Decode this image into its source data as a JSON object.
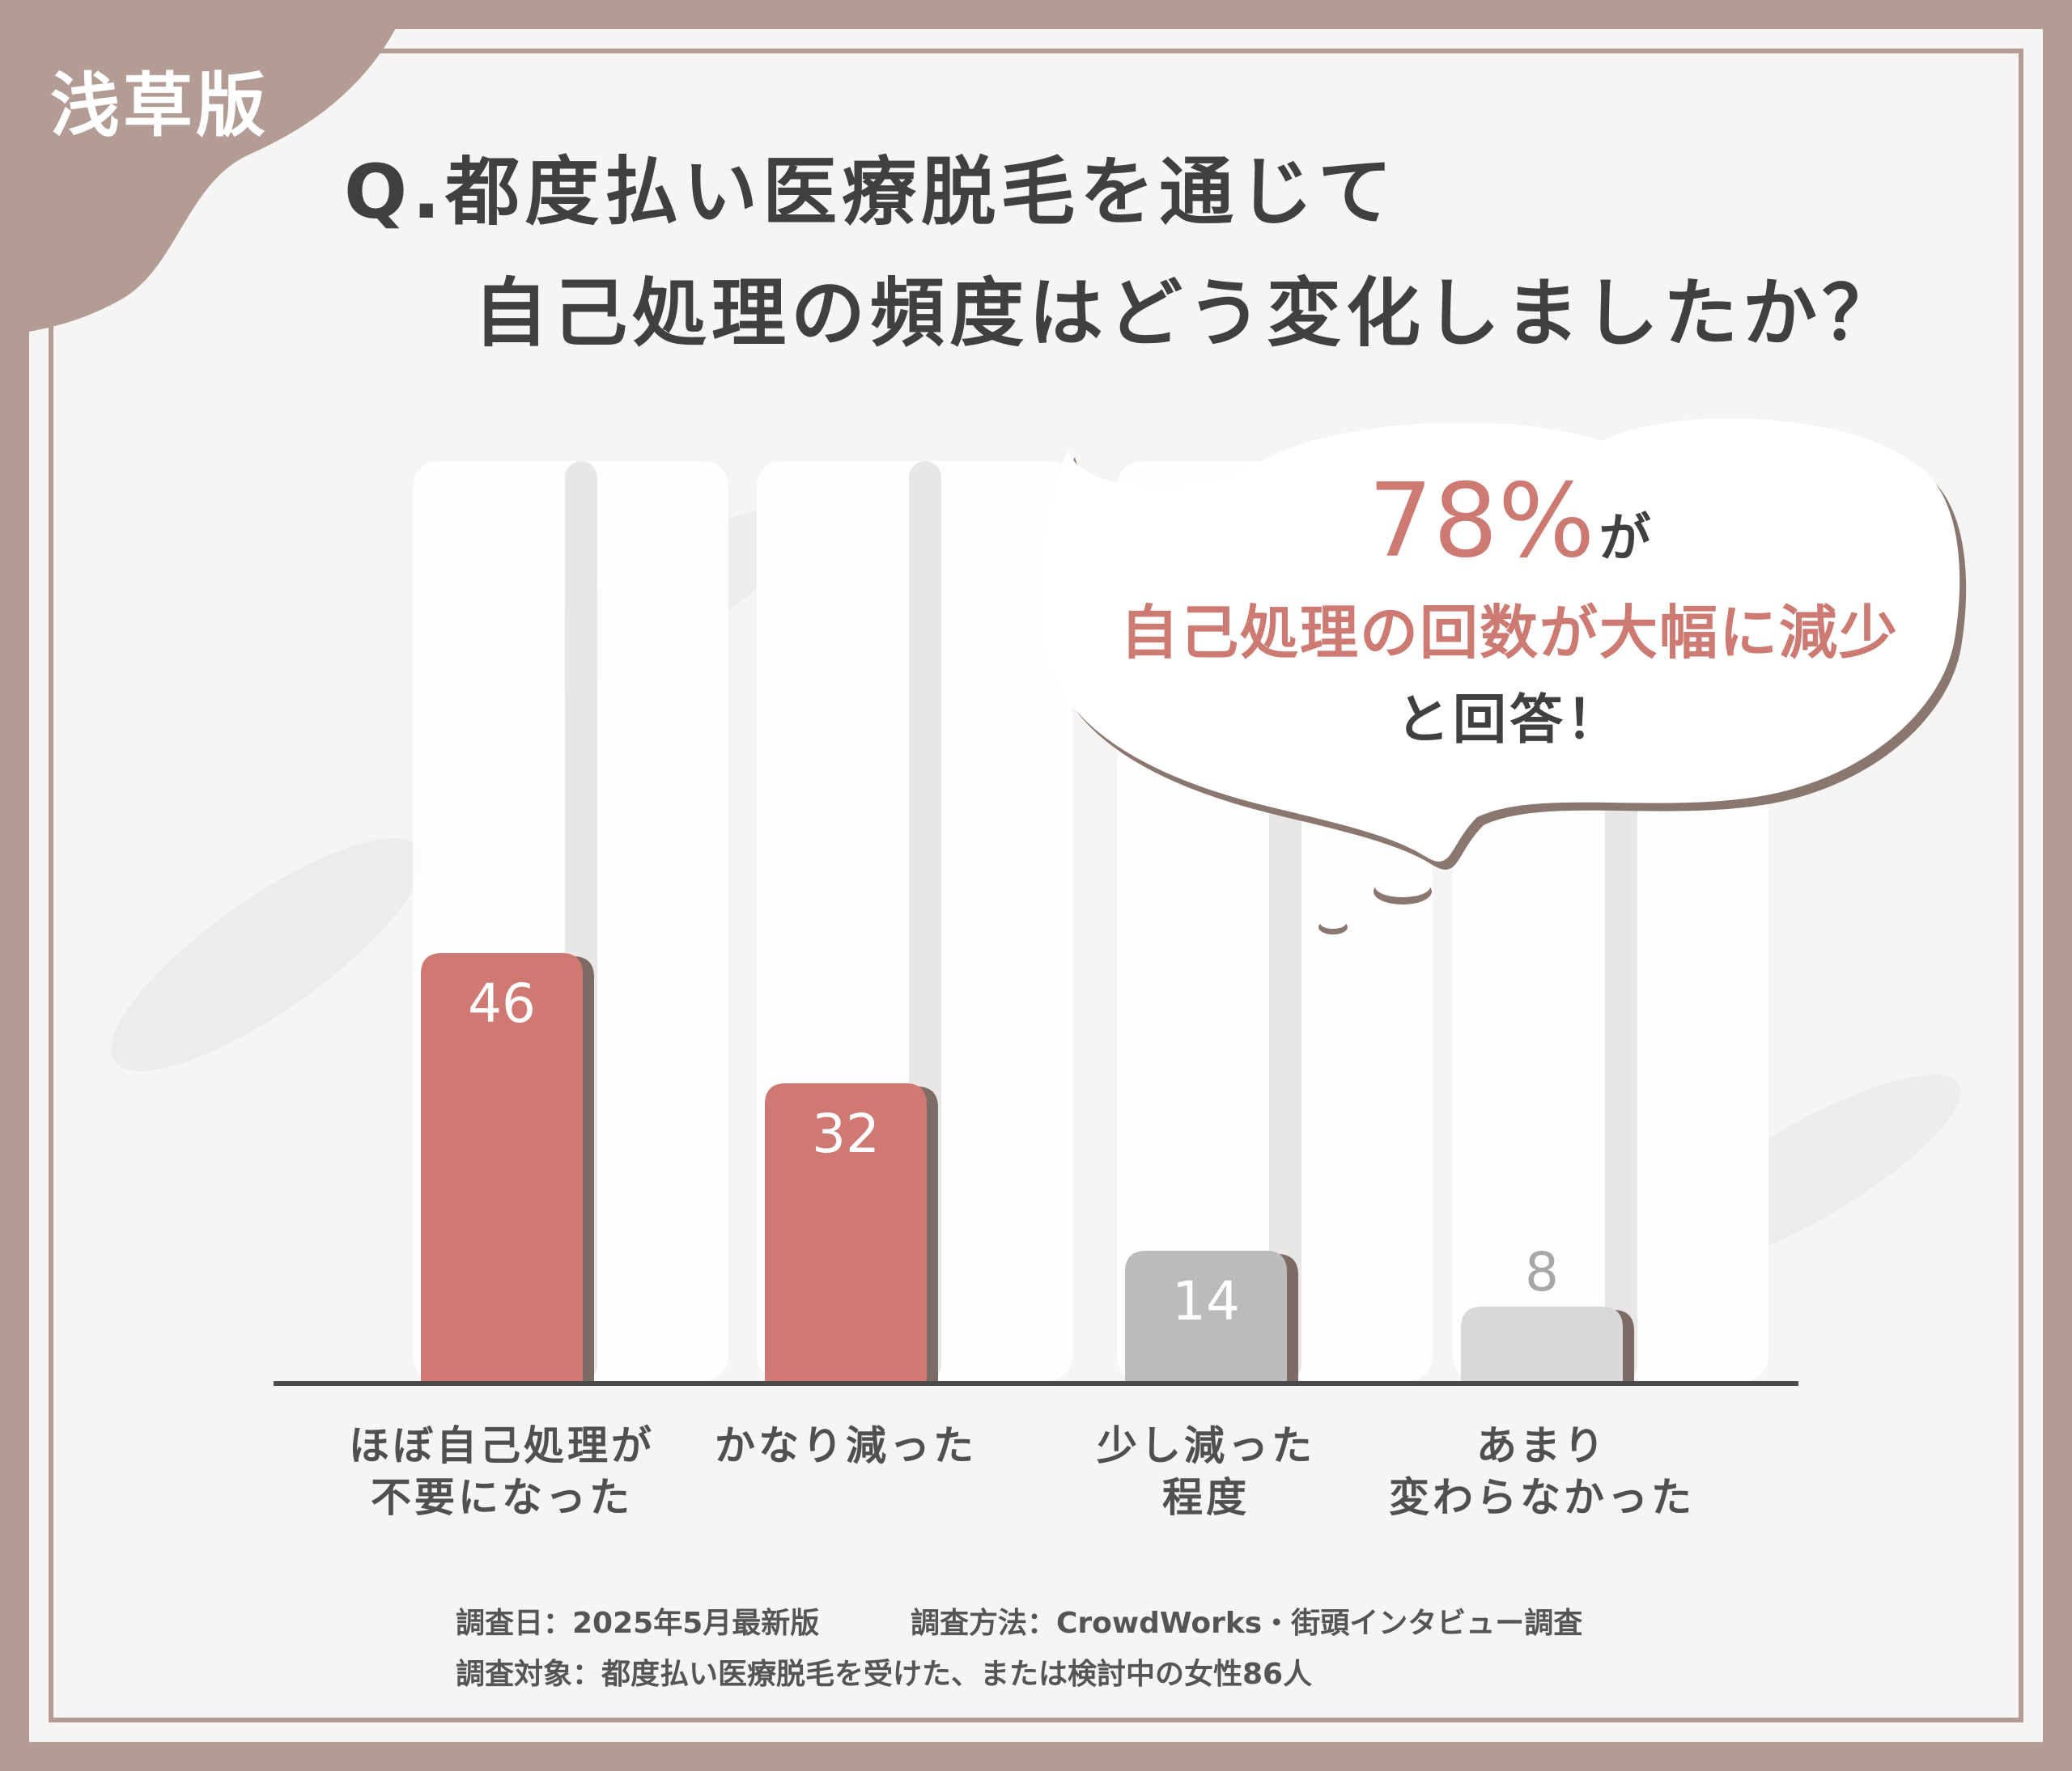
{
  "badge": {
    "label": "浅草版"
  },
  "question": {
    "line1": "Q.都度払い医療脱毛を通じて",
    "line2": "自己処理の頻度はどう変化しましたか？"
  },
  "callout": {
    "percent": "78%",
    "percent_suffix": "が",
    "line2": "自己処理の回数が大幅に減少",
    "line3": "と回答！"
  },
  "chart_data": {
    "type": "bar",
    "categories": [
      "ほぼ自己処理が\n不要になった",
      "かなり減った",
      "少し減った\n程度",
      "あまり\n変わらなかった"
    ],
    "values": [
      46,
      32,
      14,
      8
    ],
    "title": "Q.都度払い医療脱毛を通じて 自己処理の頻度はどう変化しましたか？",
    "xlabel": "",
    "ylabel": "",
    "grid": false,
    "bar_colors": [
      "#d07972",
      "#d07972",
      "#bcbaba",
      "#d9d8d8"
    ],
    "value_label_colors": [
      "#ffffff",
      "#ffffff",
      "#ffffff",
      "#a8a6a6"
    ]
  },
  "footer": {
    "date": "調査日：2025年5月最新版",
    "method": "調査方法：CrowdWorks・街頭インタビュー調査",
    "target": "調査対象：都度払い医療脱毛を受けた、または検討中の女性86人"
  },
  "colors": {
    "frame": "#b29c93",
    "paper": "#f6f5f4",
    "accent": "#d07972",
    "text": "#404040"
  }
}
